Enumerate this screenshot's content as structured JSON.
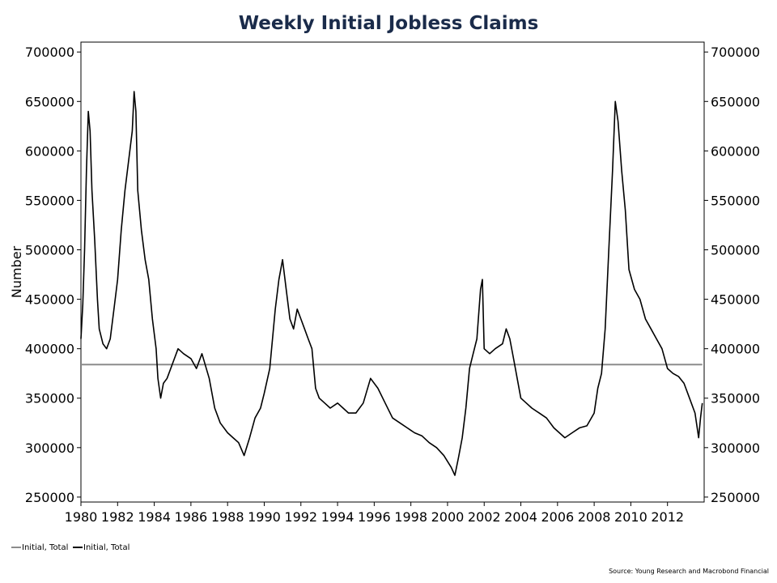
{
  "chart_data": {
    "type": "line",
    "title": "Weekly Initial Jobless Claims",
    "ylabel": "Number",
    "xlabel": "",
    "xlim": [
      1980,
      2014
    ],
    "ylim": [
      245000,
      710000
    ],
    "x_ticks": [
      "1980",
      "1982",
      "1984",
      "1986",
      "1988",
      "1990",
      "1992",
      "1994",
      "1996",
      "1998",
      "2000",
      "2002",
      "2004",
      "2006",
      "2008",
      "2010",
      "2012"
    ],
    "y_ticks": [
      "250000",
      "300000",
      "350000",
      "400000",
      "450000",
      "500000",
      "550000",
      "600000",
      "650000",
      "700000"
    ],
    "grid": false,
    "legend_placement": "bottom-left",
    "source": "Source: Young Research and Macrobond Financial",
    "colors": {
      "average": "#8c8c8c",
      "claims": "#000000",
      "title": "#1a2b4a"
    },
    "series": [
      {
        "name": "Initial, Total",
        "style": "average",
        "points": [
          [
            1980.0,
            384000
          ],
          [
            2013.9,
            384000
          ]
        ]
      },
      {
        "name": "Initial, Total",
        "style": "claims",
        "points": [
          [
            1980.0,
            410000
          ],
          [
            1980.1,
            445000
          ],
          [
            1980.2,
            500000
          ],
          [
            1980.3,
            580000
          ],
          [
            1980.4,
            640000
          ],
          [
            1980.5,
            620000
          ],
          [
            1980.6,
            560000
          ],
          [
            1980.75,
            510000
          ],
          [
            1980.9,
            450000
          ],
          [
            1981.0,
            420000
          ],
          [
            1981.2,
            405000
          ],
          [
            1981.4,
            400000
          ],
          [
            1981.6,
            410000
          ],
          [
            1981.8,
            440000
          ],
          [
            1982.0,
            470000
          ],
          [
            1982.2,
            520000
          ],
          [
            1982.4,
            560000
          ],
          [
            1982.6,
            590000
          ],
          [
            1982.8,
            620000
          ],
          [
            1982.9,
            660000
          ],
          [
            1983.0,
            640000
          ],
          [
            1983.1,
            560000
          ],
          [
            1983.3,
            520000
          ],
          [
            1983.5,
            490000
          ],
          [
            1983.7,
            470000
          ],
          [
            1983.9,
            430000
          ],
          [
            1984.1,
            400000
          ],
          [
            1984.2,
            370000
          ],
          [
            1984.35,
            350000
          ],
          [
            1984.5,
            365000
          ],
          [
            1984.7,
            370000
          ],
          [
            1985.0,
            385000
          ],
          [
            1985.3,
            400000
          ],
          [
            1985.6,
            395000
          ],
          [
            1986.0,
            390000
          ],
          [
            1986.3,
            380000
          ],
          [
            1986.6,
            395000
          ],
          [
            1987.0,
            370000
          ],
          [
            1987.3,
            340000
          ],
          [
            1987.6,
            325000
          ],
          [
            1988.0,
            315000
          ],
          [
            1988.3,
            310000
          ],
          [
            1988.6,
            305000
          ],
          [
            1988.9,
            292000
          ],
          [
            1989.2,
            310000
          ],
          [
            1989.5,
            330000
          ],
          [
            1989.8,
            340000
          ],
          [
            1990.0,
            355000
          ],
          [
            1990.3,
            380000
          ],
          [
            1990.6,
            440000
          ],
          [
            1990.8,
            470000
          ],
          [
            1991.0,
            490000
          ],
          [
            1991.2,
            460000
          ],
          [
            1991.4,
            430000
          ],
          [
            1991.6,
            420000
          ],
          [
            1991.8,
            440000
          ],
          [
            1992.0,
            430000
          ],
          [
            1992.2,
            420000
          ],
          [
            1992.4,
            410000
          ],
          [
            1992.6,
            400000
          ],
          [
            1992.8,
            360000
          ],
          [
            1993.0,
            350000
          ],
          [
            1993.3,
            345000
          ],
          [
            1993.6,
            340000
          ],
          [
            1994.0,
            345000
          ],
          [
            1994.3,
            340000
          ],
          [
            1994.6,
            335000
          ],
          [
            1995.0,
            335000
          ],
          [
            1995.4,
            345000
          ],
          [
            1995.8,
            370000
          ],
          [
            1996.2,
            360000
          ],
          [
            1996.6,
            345000
          ],
          [
            1997.0,
            330000
          ],
          [
            1997.4,
            325000
          ],
          [
            1997.8,
            320000
          ],
          [
            1998.2,
            315000
          ],
          [
            1998.6,
            312000
          ],
          [
            1999.0,
            305000
          ],
          [
            1999.4,
            300000
          ],
          [
            1999.8,
            292000
          ],
          [
            2000.2,
            280000
          ],
          [
            2000.4,
            272000
          ],
          [
            2000.6,
            290000
          ],
          [
            2000.8,
            310000
          ],
          [
            2001.0,
            340000
          ],
          [
            2001.2,
            380000
          ],
          [
            2001.4,
            395000
          ],
          [
            2001.6,
            410000
          ],
          [
            2001.8,
            460000
          ],
          [
            2001.9,
            470000
          ],
          [
            2002.0,
            400000
          ],
          [
            2002.3,
            395000
          ],
          [
            2002.6,
            400000
          ],
          [
            2003.0,
            405000
          ],
          [
            2003.2,
            420000
          ],
          [
            2003.4,
            410000
          ],
          [
            2003.6,
            390000
          ],
          [
            2003.8,
            370000
          ],
          [
            2004.0,
            350000
          ],
          [
            2004.3,
            345000
          ],
          [
            2004.6,
            340000
          ],
          [
            2005.0,
            335000
          ],
          [
            2005.4,
            330000
          ],
          [
            2005.8,
            320000
          ],
          [
            2006.1,
            315000
          ],
          [
            2006.4,
            310000
          ],
          [
            2006.8,
            315000
          ],
          [
            2007.2,
            320000
          ],
          [
            2007.6,
            322000
          ],
          [
            2008.0,
            335000
          ],
          [
            2008.2,
            360000
          ],
          [
            2008.4,
            375000
          ],
          [
            2008.6,
            420000
          ],
          [
            2008.8,
            500000
          ],
          [
            2009.0,
            580000
          ],
          [
            2009.15,
            650000
          ],
          [
            2009.3,
            630000
          ],
          [
            2009.5,
            580000
          ],
          [
            2009.7,
            540000
          ],
          [
            2009.9,
            480000
          ],
          [
            2010.2,
            460000
          ],
          [
            2010.5,
            450000
          ],
          [
            2010.8,
            430000
          ],
          [
            2011.1,
            420000
          ],
          [
            2011.4,
            410000
          ],
          [
            2011.7,
            400000
          ],
          [
            2012.0,
            380000
          ],
          [
            2012.3,
            375000
          ],
          [
            2012.6,
            372000
          ],
          [
            2012.9,
            365000
          ],
          [
            2013.2,
            350000
          ],
          [
            2013.5,
            335000
          ],
          [
            2013.7,
            310000
          ],
          [
            2013.8,
            330000
          ],
          [
            2013.9,
            345000
          ]
        ]
      }
    ]
  }
}
